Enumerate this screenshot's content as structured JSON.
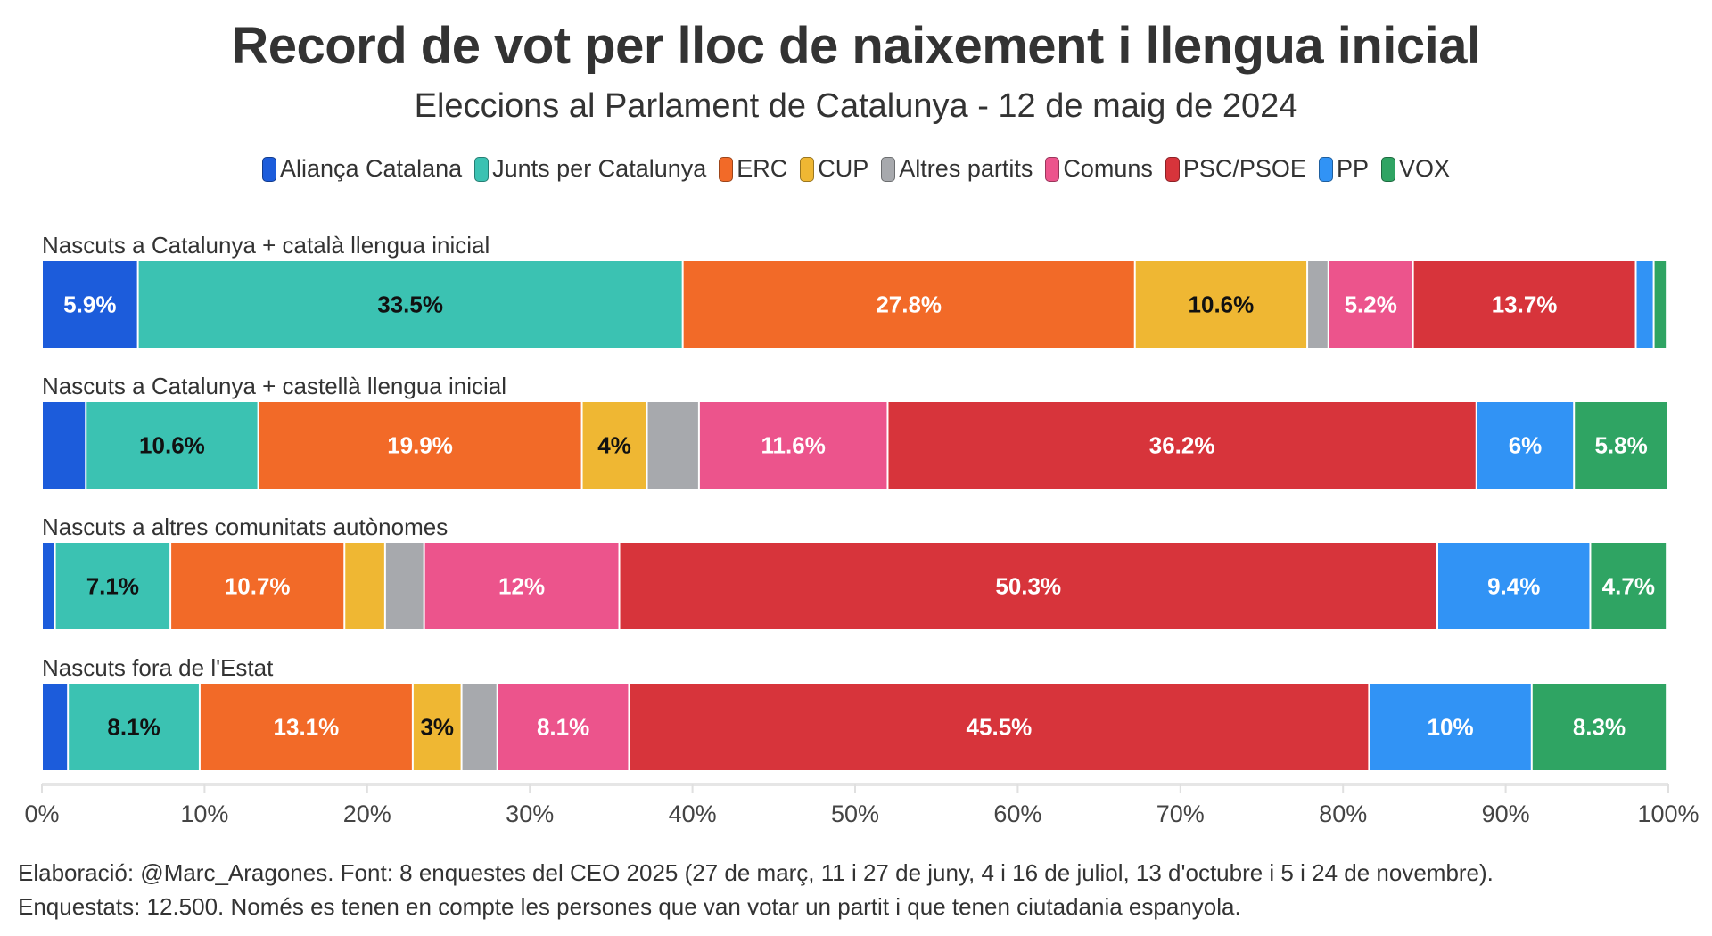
{
  "chart_data": {
    "type": "bar",
    "orientation": "horizontal",
    "stacked": true,
    "title": "Record de vot per lloc de naixement i llengua inicial",
    "subtitle": "Eleccions al Parlament de Catalunya - 12 de maig de 2024",
    "xlabel": "",
    "ylabel": "",
    "xlim": [
      0,
      100
    ],
    "x_ticks": [
      "0%",
      "10%",
      "20%",
      "30%",
      "40%",
      "50%",
      "60%",
      "70%",
      "80%",
      "90%",
      "100%"
    ],
    "legend_position": "top-center",
    "categories": [
      "Nascuts a Catalunya + català llengua inicial",
      "Nascuts a Catalunya + castellà llengua inicial",
      "Nascuts a altres comunitats autònomes",
      "Nascuts fora de l'Estat"
    ],
    "series": [
      {
        "name": "Aliança Catalana",
        "color": "#1c5cdb",
        "label_color": "#ffffff",
        "values": [
          5.9,
          2.7,
          0.8,
          1.6
        ],
        "labels": [
          "5.9%",
          "",
          "",
          ""
        ]
      },
      {
        "name": "Junts per Catalunya",
        "color": "#3bc2b2",
        "label_color": "#111111",
        "values": [
          33.5,
          10.6,
          7.1,
          8.1
        ],
        "labels": [
          "33.5%",
          "10.6%",
          "7.1%",
          "8.1%"
        ]
      },
      {
        "name": "ERC",
        "color": "#f26a28",
        "label_color": "#ffffff",
        "values": [
          27.8,
          19.9,
          10.7,
          13.1
        ],
        "labels": [
          "27.8%",
          "19.9%",
          "10.7%",
          "13.1%"
        ]
      },
      {
        "name": "CUP",
        "color": "#efb733",
        "label_color": "#111111",
        "values": [
          10.6,
          4,
          2.5,
          3
        ],
        "labels": [
          "10.6%",
          "4%",
          "",
          "3%"
        ]
      },
      {
        "name": "Altres partits",
        "color": "#a7a9ad",
        "label_color": "#111111",
        "values": [
          1.3,
          3.2,
          2.4,
          2.2
        ],
        "labels": [
          "",
          "",
          "",
          ""
        ]
      },
      {
        "name": "Comuns",
        "color": "#ec548c",
        "label_color": "#ffffff",
        "values": [
          5.2,
          11.6,
          12,
          8.1
        ],
        "labels": [
          "5.2%",
          "11.6%",
          "12%",
          "8.1%"
        ]
      },
      {
        "name": "PSC/PSOE",
        "color": "#d7343b",
        "label_color": "#ffffff",
        "values": [
          13.7,
          36.2,
          50.3,
          45.5
        ],
        "labels": [
          "13.7%",
          "36.2%",
          "50.3%",
          "45.5%"
        ]
      },
      {
        "name": "PP",
        "color": "#3193f5",
        "label_color": "#ffffff",
        "values": [
          1.1,
          6,
          9.4,
          10
        ],
        "labels": [
          "",
          "6%",
          "9.4%",
          "10%"
        ]
      },
      {
        "name": "VOX",
        "color": "#2fa463",
        "label_color": "#ffffff",
        "values": [
          0.8,
          5.8,
          4.7,
          8.3
        ],
        "labels": [
          "",
          "5.8%",
          "4.7%",
          "8.3%"
        ]
      }
    ],
    "grid": false
  },
  "footer": {
    "line1": "Elaboració: @Marc_Aragones. Font: 8 enquestes del CEO 2025 (27 de març, 11 i 27 de juny, 4 i 16 de juliol, 13 d'octubre i 5 i 24 de novembre).",
    "line2": "Enquestats: 12.500. Només es tenen en compte les persones que van votar un partit i que tenen ciutadania espanyola."
  }
}
